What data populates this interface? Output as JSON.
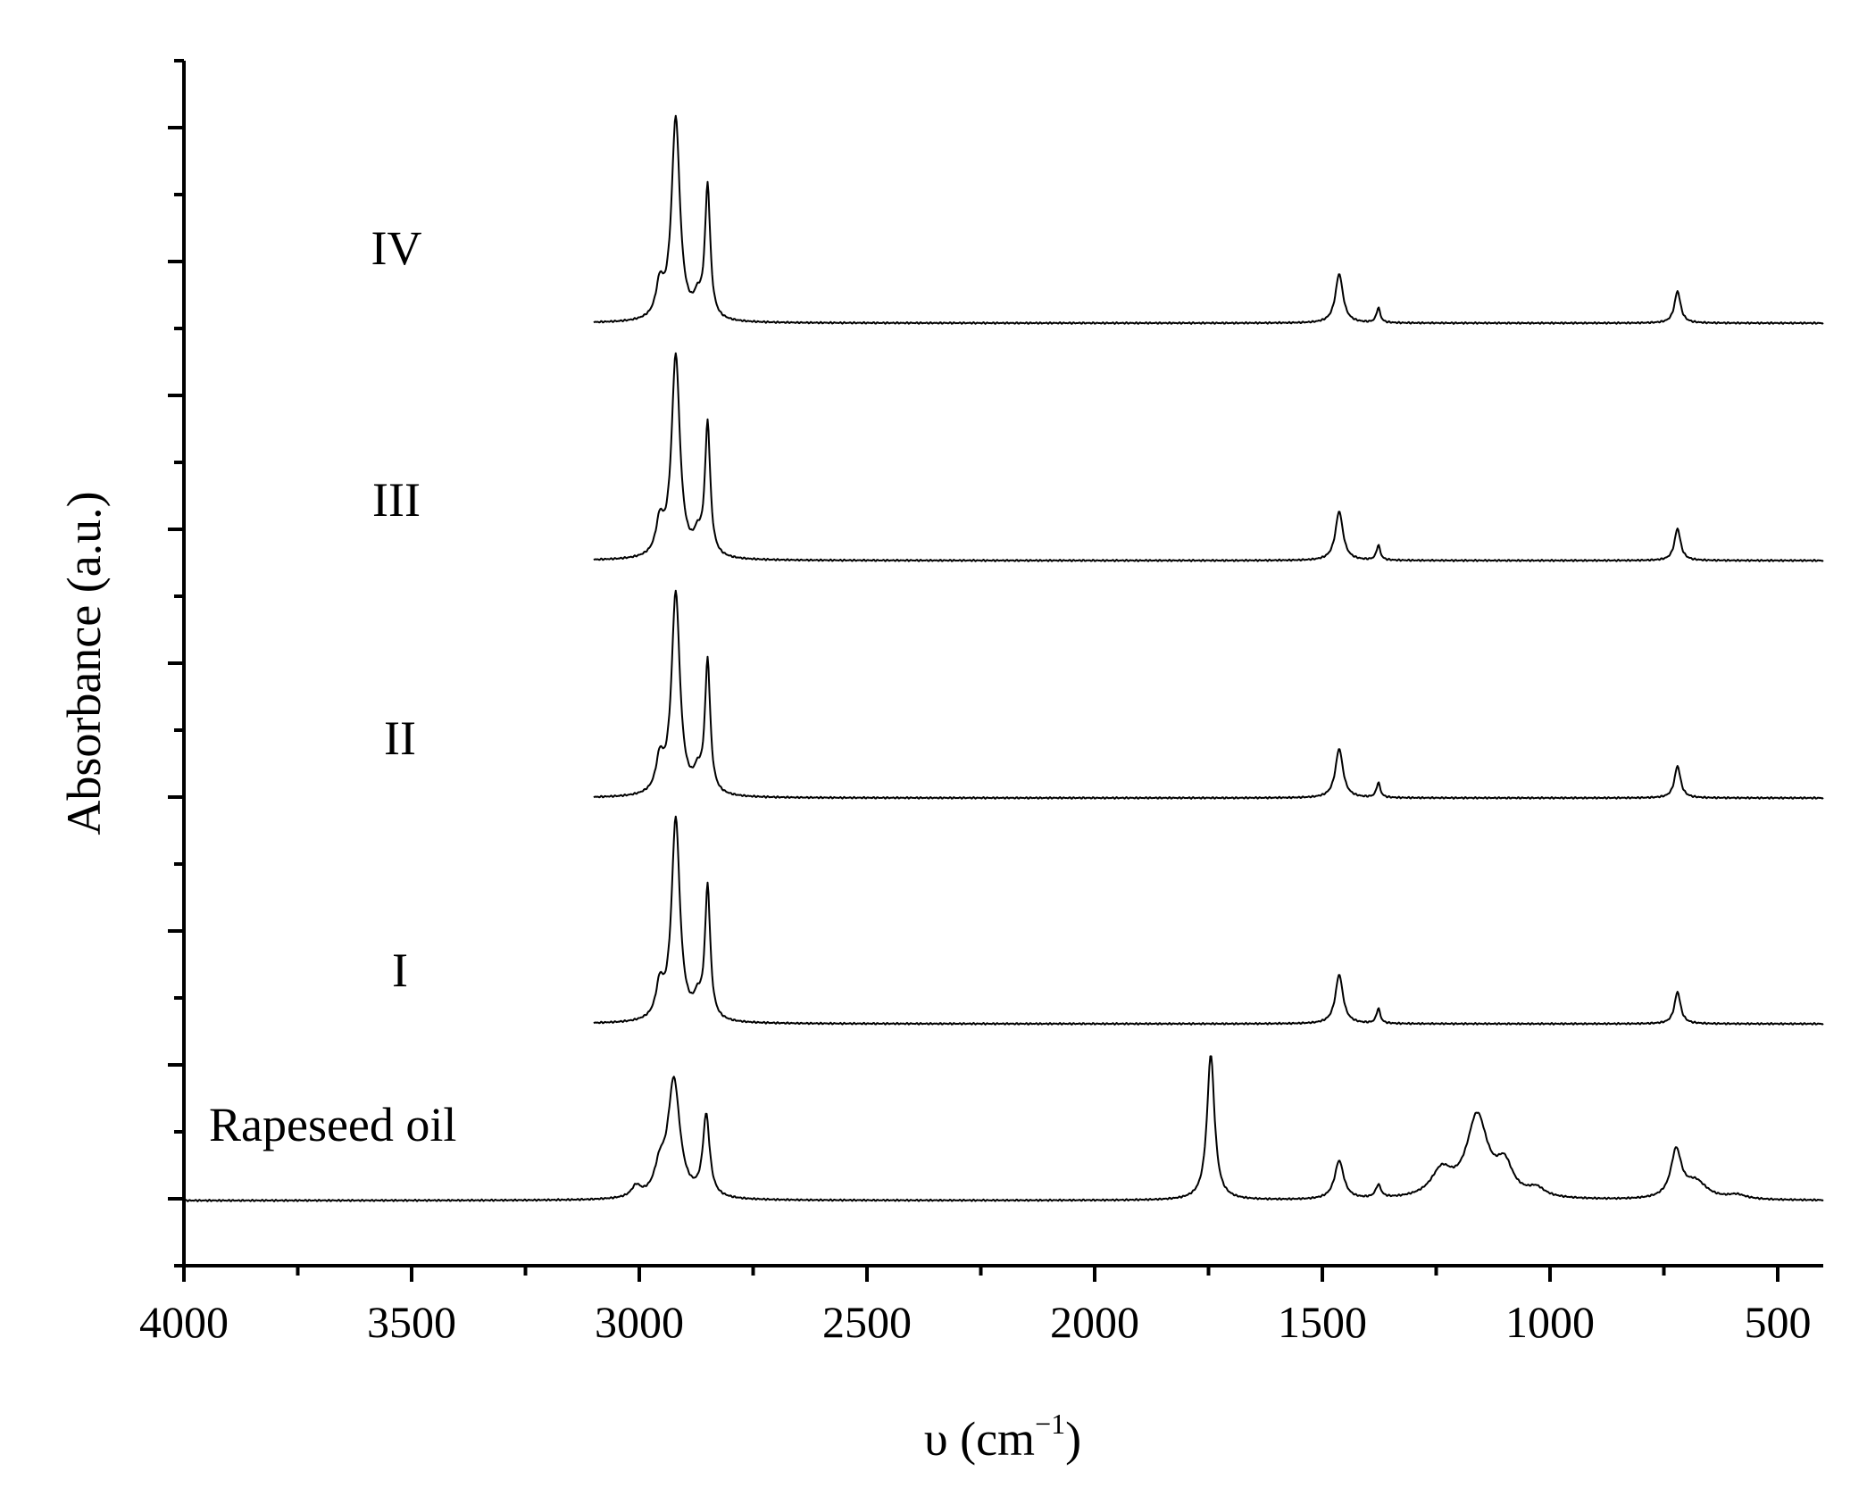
{
  "chart_data": {
    "type": "line",
    "xlabel": "υ (cm",
    "xlabel_sup": "−1",
    "xlabel_close": ")",
    "ylabel": "Absorbance (a.u.)",
    "xlim": [
      4000,
      400
    ],
    "x_reversed": true,
    "x_ticks": [
      4000,
      3500,
      3000,
      2500,
      2000,
      1500,
      1000,
      500
    ],
    "x_tick_labels": [
      "4000",
      "3500",
      "3000",
      "2500",
      "2000",
      "1500",
      "1000",
      "500"
    ],
    "y_ticks_shown_without_labels": true,
    "grid": false,
    "legend": "none (series labelled directly on the plot)",
    "series": [
      {
        "name": "Rapeseed oil",
        "range": [
          4000,
          400
        ],
        "peaks": [
          {
            "x": 3007,
            "h": 0.05,
            "w": 12
          },
          {
            "x": 2955,
            "h": 0.12,
            "w": 14
          },
          {
            "x": 2924,
            "h": 0.55,
            "w": 16
          },
          {
            "x": 2853,
            "h": 0.38,
            "w": 9
          },
          {
            "x": 1745,
            "h": 0.68,
            "w": 10
          },
          {
            "x": 1463,
            "h": 0.18,
            "w": 12
          },
          {
            "x": 1377,
            "h": 0.06,
            "w": 7
          },
          {
            "x": 1238,
            "h": 0.12,
            "w": 28
          },
          {
            "x": 1160,
            "h": 0.38,
            "w": 28
          },
          {
            "x": 1100,
            "h": 0.14,
            "w": 22
          },
          {
            "x": 1030,
            "h": 0.04,
            "w": 22
          },
          {
            "x": 723,
            "h": 0.22,
            "w": 14
          },
          {
            "x": 680,
            "h": 0.08,
            "w": 30
          },
          {
            "x": 590,
            "h": 0.02,
            "w": 25
          }
        ]
      },
      {
        "name": "I",
        "range": [
          3100,
          400
        ],
        "peaks": [
          {
            "x": 2955,
            "h": 0.15,
            "w": 10
          },
          {
            "x": 2920,
            "h": 0.95,
            "w": 11
          },
          {
            "x": 2872,
            "h": 0.08,
            "w": 10
          },
          {
            "x": 2850,
            "h": 0.62,
            "w": 7
          },
          {
            "x": 1463,
            "h": 0.23,
            "w": 10
          },
          {
            "x": 1377,
            "h": 0.07,
            "w": 5
          },
          {
            "x": 720,
            "h": 0.15,
            "w": 8
          }
        ]
      },
      {
        "name": "II",
        "range": [
          3100,
          400
        ],
        "peaks": [
          {
            "x": 2955,
            "h": 0.15,
            "w": 10
          },
          {
            "x": 2920,
            "h": 0.95,
            "w": 11
          },
          {
            "x": 2872,
            "h": 0.08,
            "w": 10
          },
          {
            "x": 2850,
            "h": 0.62,
            "w": 7
          },
          {
            "x": 1463,
            "h": 0.23,
            "w": 10
          },
          {
            "x": 1377,
            "h": 0.07,
            "w": 5
          },
          {
            "x": 720,
            "h": 0.15,
            "w": 8
          }
        ]
      },
      {
        "name": "III",
        "range": [
          3100,
          400
        ],
        "peaks": [
          {
            "x": 2955,
            "h": 0.15,
            "w": 10
          },
          {
            "x": 2920,
            "h": 0.95,
            "w": 11
          },
          {
            "x": 2872,
            "h": 0.08,
            "w": 10
          },
          {
            "x": 2850,
            "h": 0.62,
            "w": 7
          },
          {
            "x": 1463,
            "h": 0.23,
            "w": 10
          },
          {
            "x": 1377,
            "h": 0.07,
            "w": 5
          },
          {
            "x": 720,
            "h": 0.15,
            "w": 8
          }
        ]
      },
      {
        "name": "IV",
        "range": [
          3100,
          400
        ],
        "peaks": [
          {
            "x": 2955,
            "h": 0.15,
            "w": 10
          },
          {
            "x": 2920,
            "h": 0.95,
            "w": 11
          },
          {
            "x": 2872,
            "h": 0.08,
            "w": 10
          },
          {
            "x": 2850,
            "h": 0.62,
            "w": 7
          },
          {
            "x": 1463,
            "h": 0.23,
            "w": 10
          },
          {
            "x": 1377,
            "h": 0.07,
            "w": 5
          },
          {
            "x": 720,
            "h": 0.15,
            "w": 8
          }
        ]
      }
    ]
  }
}
